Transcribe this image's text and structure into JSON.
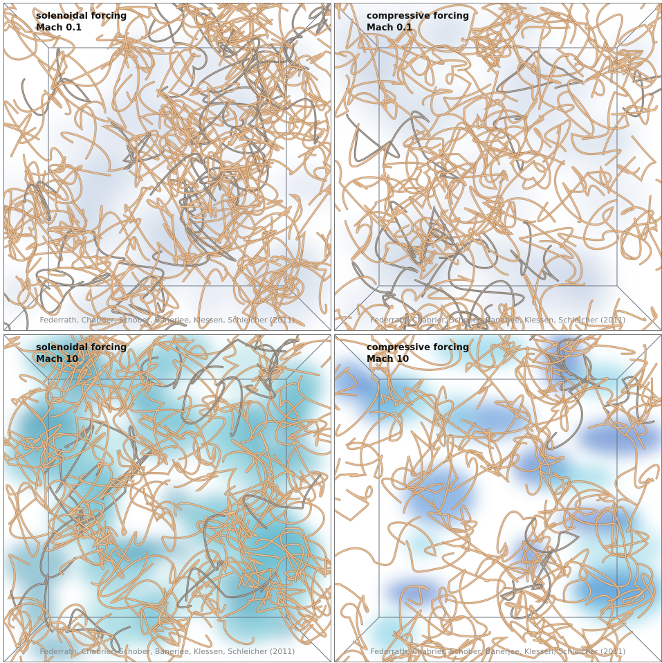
{
  "panels": [
    {
      "title": "solenoidal forcing",
      "subtitle": "Mach 0.1",
      "credit": "Federrath, Chabrier, Schober, Banerjee, Klessen, Schleicher (2011)"
    },
    {
      "title": "compressive forcing",
      "subtitle": "Mach 0.1",
      "credit": "Federrath, Chabrier, Schober, Banerjee, Klessen, Schleicher (2011)"
    },
    {
      "title": "solenoidal forcing",
      "subtitle": "Mach 10",
      "credit": "Federrath, Chabrier, Schober, Banerjee, Klessen, Schleicher (2011)"
    },
    {
      "title": "compressive forcing",
      "subtitle": "Mach 10",
      "credit": "Federrath, Chabrier, Schober, Banerjee, Klessen, Schleicher (2011)"
    }
  ]
}
